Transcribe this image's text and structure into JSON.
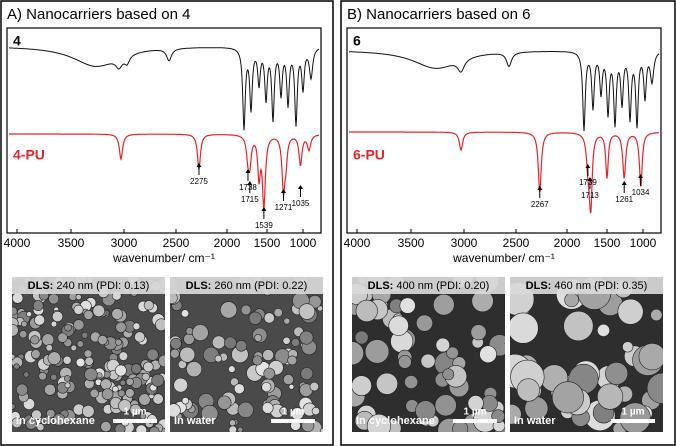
{
  "panels": [
    {
      "title": "A) Nanocarriers based on 4",
      "compound": "4",
      "polymer": "4-PU",
      "x_axis": {
        "label": "wavenumber/ cm⁻¹",
        "lim": [
          4000,
          760
        ],
        "ticks": [
          4000,
          3500,
          3000,
          2500,
          2000,
          1500,
          1000
        ]
      },
      "peaks": [
        2275,
        1738,
        1715,
        1539,
        1271,
        1035
      ],
      "images": [
        {
          "dls_label": "DLS:",
          "dls": "240 nm (PDI: 0.13)",
          "medium": "In cyclohexane",
          "scale": "1 µm"
        },
        {
          "dls_label": "DLS:",
          "dls": "260 nm (PDI: 0.22)",
          "medium": "In water",
          "scale": "1 µm"
        }
      ]
    },
    {
      "title": "B) Nanocarriers based on 6",
      "compound": "6",
      "polymer": "6-PU",
      "x_axis": {
        "label": "wavenumber/ cm⁻¹",
        "lim": [
          4000,
          760
        ],
        "ticks": [
          4000,
          3500,
          3000,
          2500,
          2000,
          1500,
          1000
        ]
      },
      "peaks": [
        2267,
        1739,
        1713,
        1261,
        1034
      ],
      "images": [
        {
          "dls_label": "DLS:",
          "dls": "400 nm (PDI: 0.20)",
          "medium": "In cyclohexane",
          "scale": "1 µm"
        },
        {
          "dls_label": "DLS:",
          "dls": "460 nm (PDI: 0.35)",
          "medium": "In water",
          "scale": "1 µm"
        }
      ]
    }
  ]
}
